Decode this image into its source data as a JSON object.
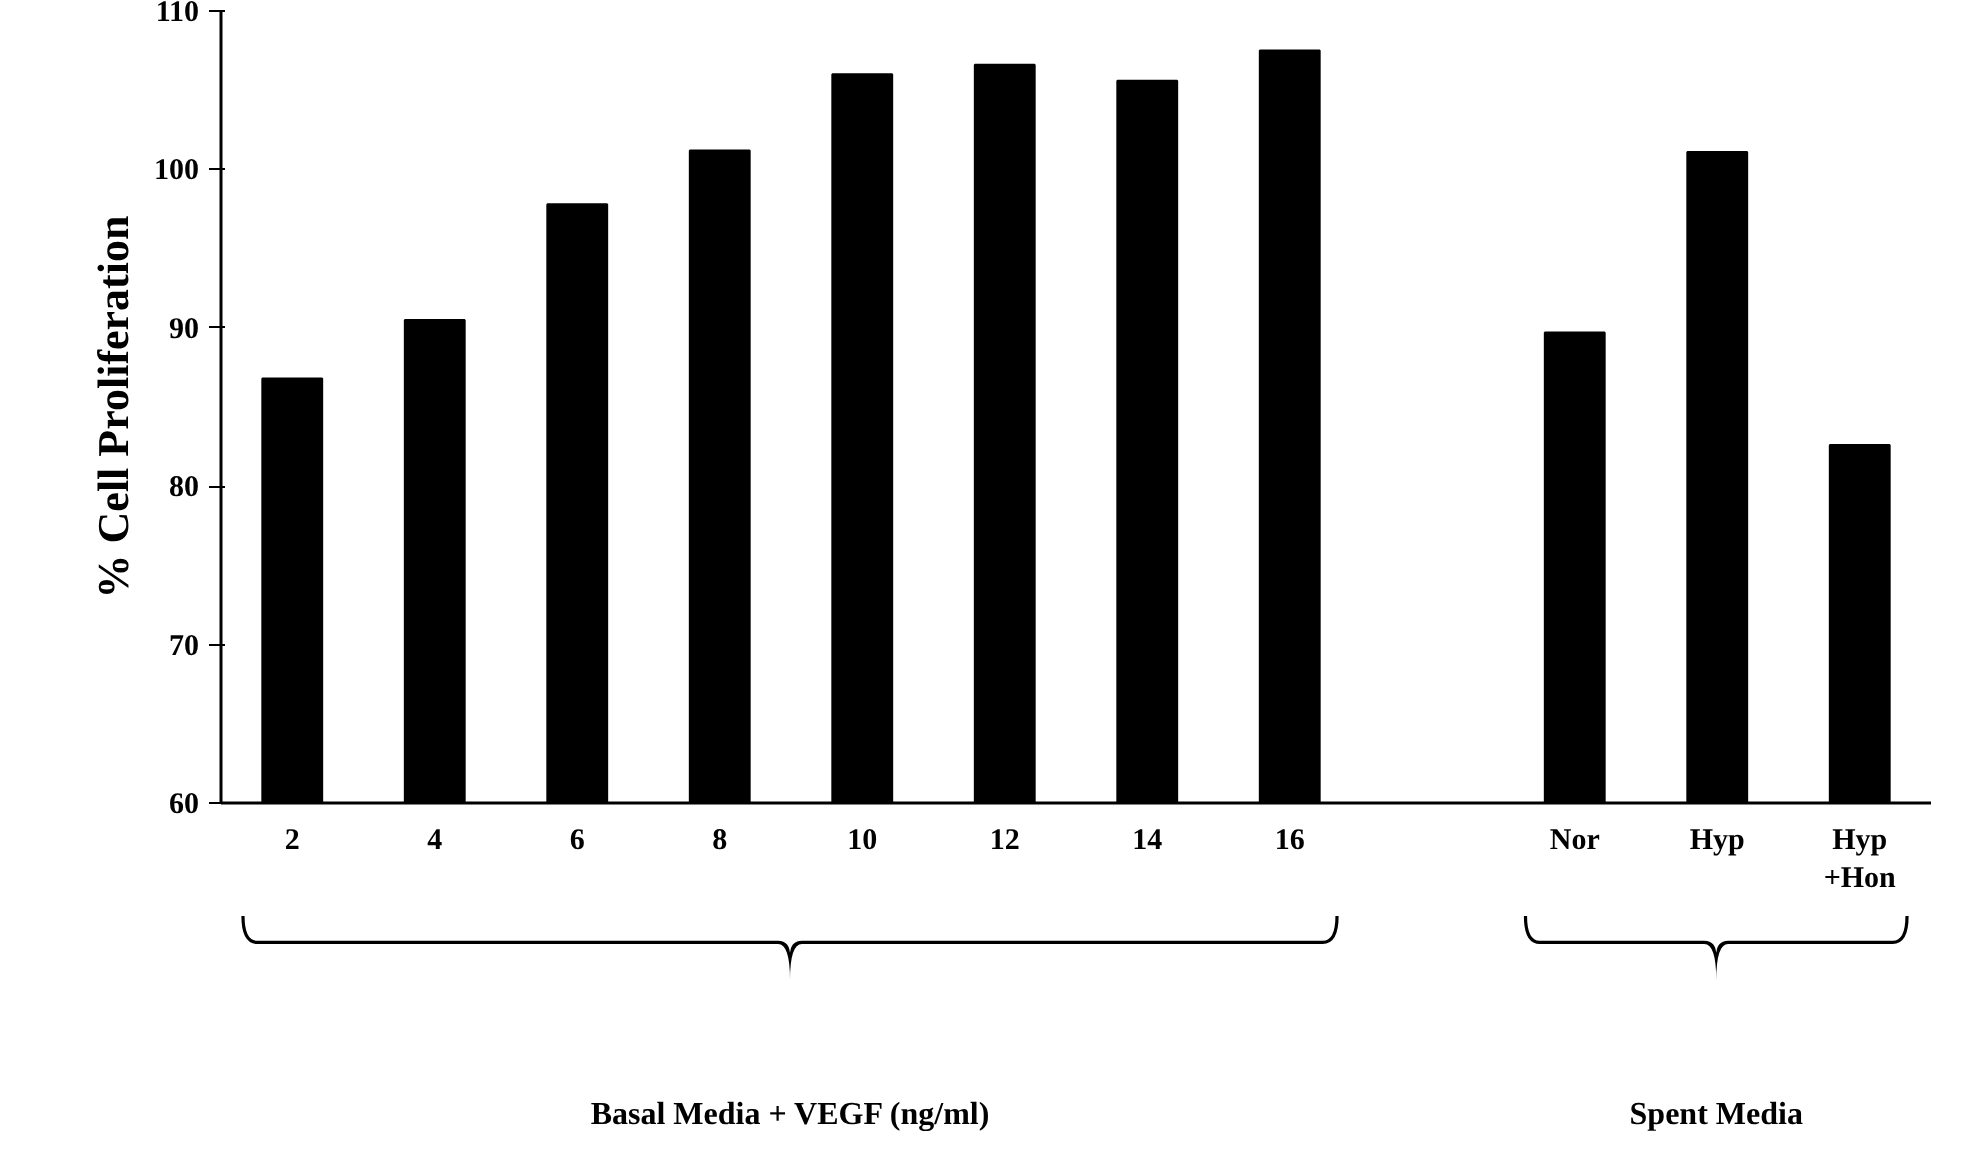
{
  "chart_data": {
    "type": "bar",
    "ylabel": "% Cell Proliferation",
    "categories": [
      "2",
      "4",
      "6",
      "8",
      "10",
      "12",
      "14",
      "16",
      null,
      "Nor",
      "Hyp",
      "Hyp\n+Hon"
    ],
    "values": [
      86.8,
      90.5,
      97.8,
      101.2,
      106.0,
      106.6,
      105.6,
      107.5,
      null,
      89.7,
      101.1,
      82.6
    ],
    "color": "#000000",
    "ylim": [
      60,
      110
    ],
    "yticks": [
      60,
      70,
      80,
      90,
      100,
      110
    ],
    "grid": false,
    "annotations": [
      "Basal Media + VEGF (ng/ml)",
      "Spent Media"
    ]
  }
}
